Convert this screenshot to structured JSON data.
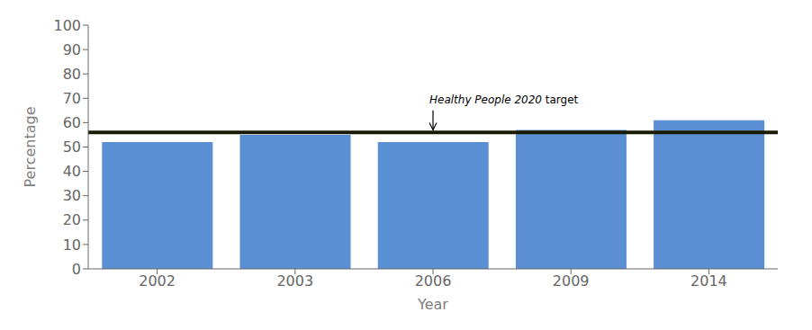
{
  "chart_data": {
    "type": "bar",
    "categories": [
      "2002",
      "2003",
      "2006",
      "2009",
      "2014"
    ],
    "values": [
      52,
      55,
      52,
      57,
      61
    ],
    "color": "#5B8FD4",
    "xlabel": "Year",
    "ylabel": "Percentage",
    "ylim": [
      0,
      100
    ],
    "yticks": [
      0,
      10,
      20,
      30,
      40,
      50,
      60,
      70,
      80,
      90,
      100
    ],
    "grid": false,
    "target": {
      "value": 56,
      "color": "#1a1a00"
    },
    "annotations": [
      {
        "text": "Healthy People 2020 target",
        "italic": "Healthy People 2020",
        "x": "2006",
        "y": 68,
        "arrow": [
          65,
          57
        ]
      }
    ]
  }
}
